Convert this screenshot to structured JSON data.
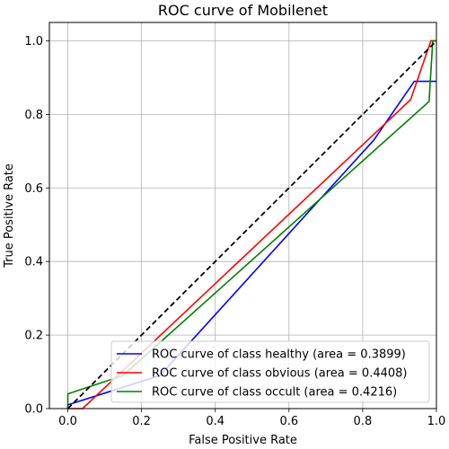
{
  "chart_data": {
    "type": "line",
    "title": "ROC curve of Mobilenet",
    "xlabel": "False Positive Rate",
    "ylabel": "True Positive Rate",
    "xlim": [
      -0.05,
      1.0
    ],
    "ylim": [
      0.0,
      1.05
    ],
    "grid": true,
    "xticks": [
      0.0,
      0.2,
      0.4,
      0.6,
      0.8,
      1.0
    ],
    "yticks": [
      0.0,
      0.2,
      0.4,
      0.6,
      0.8,
      1.0
    ],
    "xtick_labels": [
      "0.0",
      "0.2",
      "0.4",
      "0.6",
      "0.8",
      "1.0"
    ],
    "ytick_labels": [
      "0.0",
      "0.2",
      "0.4",
      "0.6",
      "0.8",
      "1.0"
    ],
    "legend_position": "lower-right",
    "series": [
      {
        "name": "ROC curve of class healthy (area = 0.3899)",
        "color": "#0000ff",
        "style": "solid",
        "x": [
          0.0,
          0.0,
          0.25,
          0.83,
          0.94,
          1.0
        ],
        "y": [
          0.0,
          0.01,
          0.09,
          0.73,
          0.89,
          0.89
        ]
      },
      {
        "name": "ROC curve of class obvious (area = 0.4408)",
        "color": "#ff0000",
        "style": "solid",
        "x": [
          0.0,
          0.04,
          0.93,
          0.985,
          1.0
        ],
        "y": [
          0.0,
          0.0,
          0.84,
          1.0,
          1.0
        ]
      },
      {
        "name": "ROC curve of class occult (area = 0.4216)",
        "color": "#008000",
        "style": "solid",
        "x": [
          0.0,
          0.0,
          0.15,
          0.98,
          0.99,
          1.0
        ],
        "y": [
          0.0,
          0.04,
          0.09,
          0.835,
          1.0,
          1.0
        ]
      },
      {
        "name": "chance",
        "color": "#000000",
        "style": "dashed",
        "legend": false,
        "x": [
          0.0,
          1.0
        ],
        "y": [
          0.0,
          1.0
        ]
      }
    ]
  }
}
